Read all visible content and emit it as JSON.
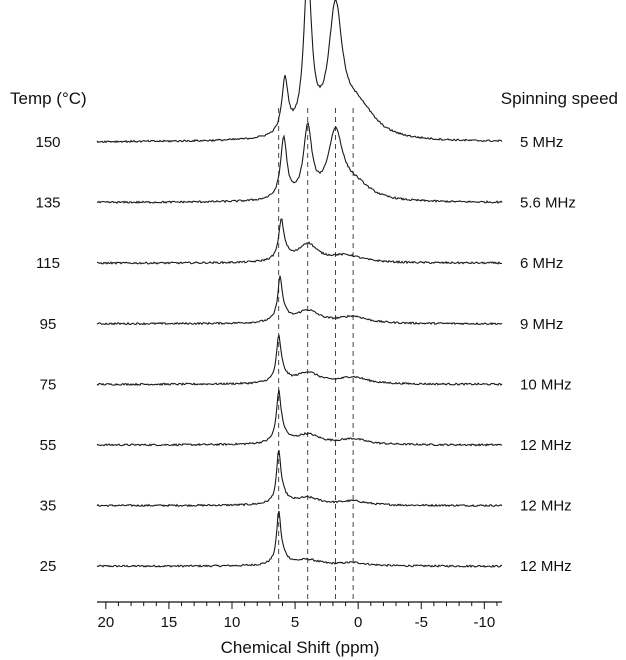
{
  "chart_data": {
    "type": "line",
    "title": "",
    "xlabel": "Chemical Shift (ppm)",
    "ylabel": "",
    "xlim": [
      20.7,
      -11.4
    ],
    "x_reversed": true,
    "x_ticks": [
      20,
      15,
      10,
      5,
      0,
      -5,
      -10
    ],
    "x_tick_labels": [
      "20",
      "15",
      "10",
      "5",
      "0",
      "-5",
      "-10"
    ],
    "left_header": "Temp (°C)",
    "right_header": "Spinning speed",
    "reference_lines_ppm": [
      6.3,
      4.0,
      1.8,
      0.4
    ],
    "grid": false,
    "legend": "none",
    "line_color": "#1a1a1a",
    "series": [
      {
        "temperature": "25",
        "speed": "12 MHz",
        "peaks": [
          {
            "ppm": 6.3,
            "height": 1.0,
            "width": 0.18
          },
          {
            "ppm": 6.1,
            "height": 0.25,
            "width": 0.5
          },
          {
            "ppm": 4.0,
            "height": 0.13,
            "width": 1.2
          },
          {
            "ppm": 0.4,
            "height": 0.07,
            "width": 1.3
          }
        ]
      },
      {
        "temperature": "35",
        "speed": "12 MHz",
        "peaks": [
          {
            "ppm": 6.3,
            "height": 1.0,
            "width": 0.18
          },
          {
            "ppm": 6.1,
            "height": 0.25,
            "width": 0.5
          },
          {
            "ppm": 4.0,
            "height": 0.16,
            "width": 1.2
          },
          {
            "ppm": 0.4,
            "height": 0.09,
            "width": 1.3
          }
        ]
      },
      {
        "temperature": "55",
        "speed": "12 MHz",
        "peaks": [
          {
            "ppm": 6.3,
            "height": 0.95,
            "width": 0.2
          },
          {
            "ppm": 6.1,
            "height": 0.25,
            "width": 0.5
          },
          {
            "ppm": 4.0,
            "height": 0.22,
            "width": 1.2
          },
          {
            "ppm": 0.4,
            "height": 0.12,
            "width": 1.3
          }
        ]
      },
      {
        "temperature": "75",
        "speed": "10 MHz",
        "peaks": [
          {
            "ppm": 6.3,
            "height": 0.85,
            "width": 0.2
          },
          {
            "ppm": 6.1,
            "height": 0.22,
            "width": 0.5
          },
          {
            "ppm": 4.0,
            "height": 0.25,
            "width": 1.1
          },
          {
            "ppm": 0.4,
            "height": 0.15,
            "width": 1.3
          }
        ]
      },
      {
        "temperature": "95",
        "speed": "9 MHz",
        "peaks": [
          {
            "ppm": 6.2,
            "height": 0.82,
            "width": 0.2
          },
          {
            "ppm": 6.0,
            "height": 0.2,
            "width": 0.5
          },
          {
            "ppm": 4.0,
            "height": 0.28,
            "width": 1.1
          },
          {
            "ppm": 0.4,
            "height": 0.15,
            "width": 1.3
          }
        ]
      },
      {
        "temperature": "115",
        "speed": "6 MHz",
        "peaks": [
          {
            "ppm": 6.1,
            "height": 0.75,
            "width": 0.22
          },
          {
            "ppm": 5.9,
            "height": 0.2,
            "width": 0.5
          },
          {
            "ppm": 4.0,
            "height": 0.4,
            "width": 0.9
          },
          {
            "ppm": 1.0,
            "height": 0.16,
            "width": 1.6
          }
        ]
      },
      {
        "temperature": "135",
        "speed": "5.6 MHz",
        "peaks": [
          {
            "ppm": 5.9,
            "height": 1.35,
            "width": 0.3
          },
          {
            "ppm": 4.0,
            "height": 1.55,
            "width": 0.4
          },
          {
            "ppm": 1.8,
            "height": 1.45,
            "width": 0.7
          },
          {
            "ppm": 0.2,
            "height": 0.35,
            "width": 1.5
          }
        ]
      },
      {
        "temperature": "150",
        "speed": "5 MHz",
        "peaks": [
          {
            "ppm": 5.8,
            "height": 1.2,
            "width": 0.3
          },
          {
            "ppm": 4.0,
            "height": 3.5,
            "width": 0.38
          },
          {
            "ppm": 1.8,
            "height": 2.75,
            "width": 0.65
          },
          {
            "ppm": 0.0,
            "height": 0.7,
            "width": 1.6
          }
        ]
      }
    ]
  }
}
